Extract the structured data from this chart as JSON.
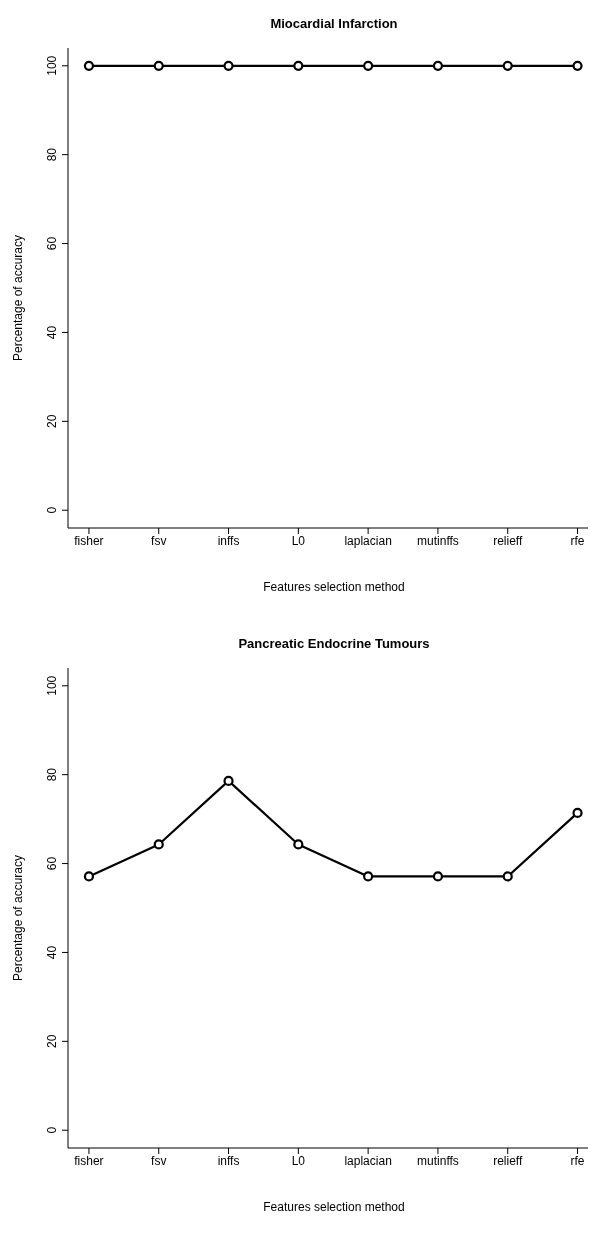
{
  "chart_data": [
    {
      "type": "line",
      "title": "Miocardial Infarction",
      "xlabel": "Features selection method",
      "ylabel": "Percentage of accuracy",
      "categories": [
        "fisher",
        "fsv",
        "inffs",
        "L0",
        "laplacian",
        "mutinffs",
        "relieff",
        "rfe"
      ],
      "series": [
        {
          "color": "#000000",
          "values": [
            100,
            100,
            100,
            100,
            100,
            100,
            100,
            100
          ]
        }
      ],
      "ylim": [
        -4,
        104
      ],
      "yticks": [
        0,
        20,
        40,
        60,
        80,
        100
      ],
      "marker": "circle",
      "line_style": "solid",
      "grid": false,
      "legend": false
    },
    {
      "type": "line",
      "title": "Pancreatic Endocrine Tumours",
      "xlabel": "Features selection method",
      "ylabel": "Percentage of accuracy",
      "categories": [
        "fisher",
        "fsv",
        "inffs",
        "L0",
        "laplacian",
        "mutinffs",
        "relieff",
        "rfe"
      ],
      "series": [
        {
          "color": "#000000",
          "values": [
            57.1,
            64.3,
            78.6,
            64.3,
            57.1,
            57.1,
            57.1,
            71.4
          ]
        }
      ],
      "ylim": [
        -4,
        104
      ],
      "yticks": [
        0,
        20,
        40,
        60,
        80,
        100
      ],
      "marker": "circle",
      "line_style": "solid",
      "grid": false,
      "legend": false
    }
  ]
}
